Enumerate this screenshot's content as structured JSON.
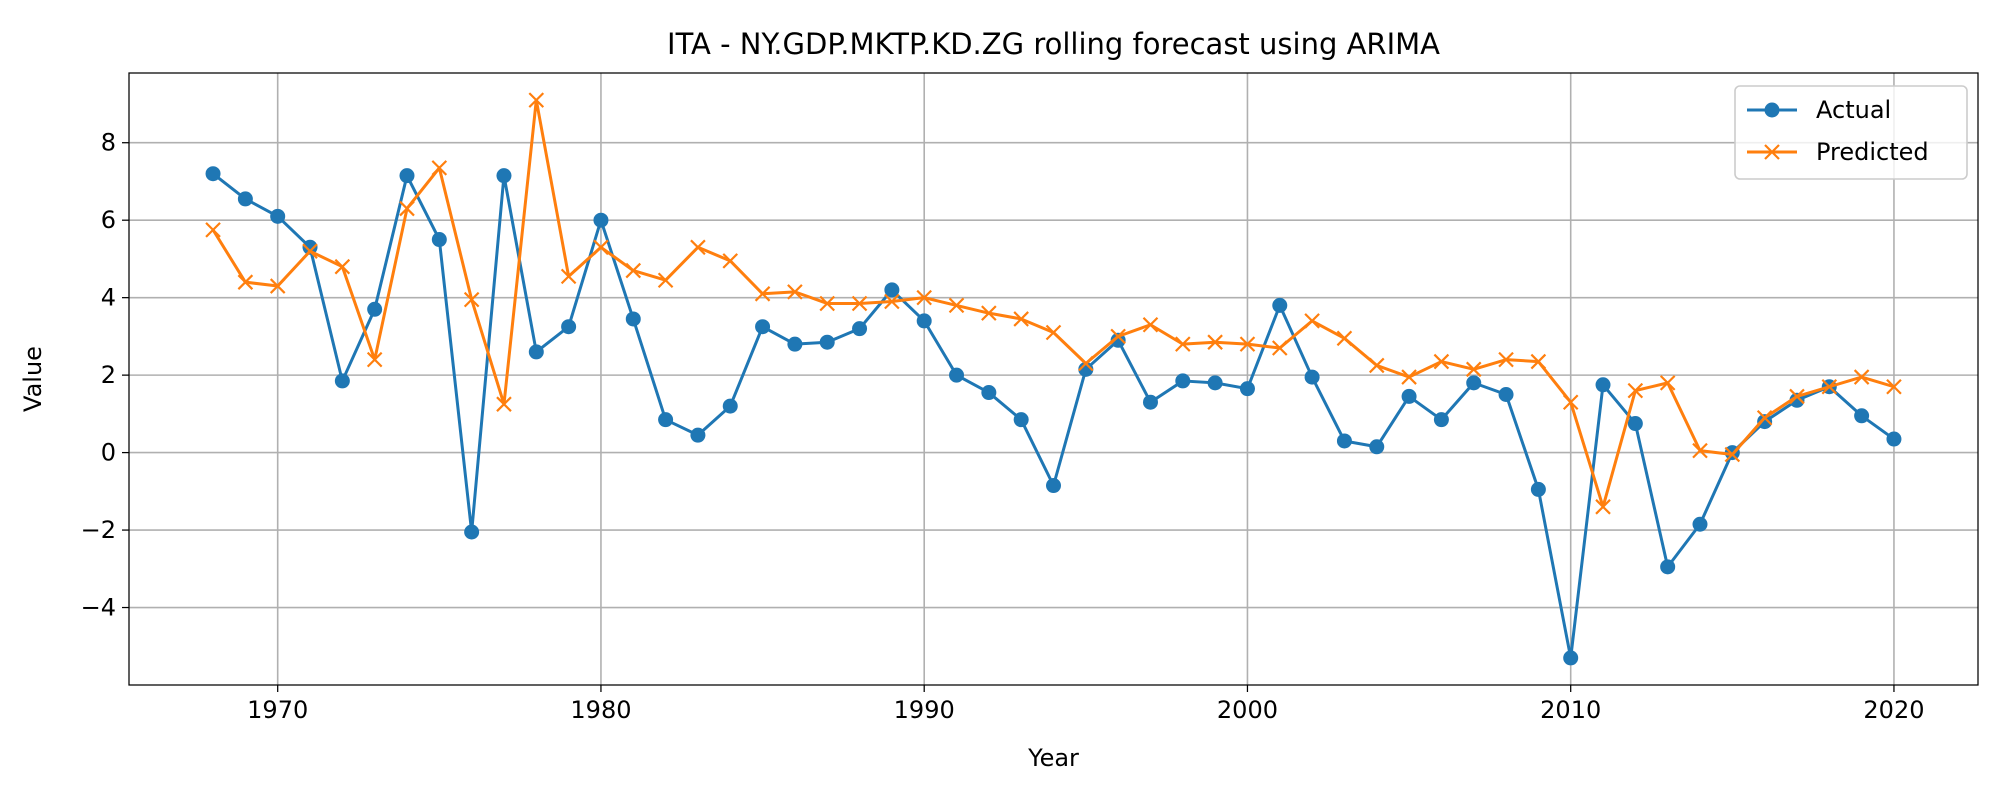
{
  "chart_data": {
    "type": "line",
    "title": "ITA - NY.GDP.MKTP.KD.ZG rolling forecast using ARIMA",
    "xlabel": "Year",
    "ylabel": "Value",
    "xlim": [
      1965.4,
      2022.6
    ],
    "ylim": [
      -6.0,
      9.8
    ],
    "xticks": [
      1970,
      1980,
      1990,
      2000,
      2010,
      2020
    ],
    "xtick_labels": [
      "1970",
      "1980",
      "1990",
      "2000",
      "2010",
      "2020"
    ],
    "yticks": [
      -4,
      -2,
      0,
      2,
      4,
      6,
      8
    ],
    "ytick_labels": [
      "−4",
      "−2",
      "0",
      "2",
      "4",
      "6",
      "8"
    ],
    "grid": true,
    "legend_position": "top-right",
    "x": [
      1968,
      1969,
      1970,
      1971,
      1972,
      1973,
      1974,
      1975,
      1976,
      1977,
      1978,
      1979,
      1980,
      1981,
      1982,
      1983,
      1984,
      1985,
      1986,
      1987,
      1988,
      1989,
      1990,
      1991,
      1992,
      1993,
      1994,
      1995,
      1996,
      1997,
      1998,
      1999,
      2000,
      2001,
      2002,
      2003,
      2004,
      2005,
      2006,
      2007,
      2008,
      2009,
      2010,
      2011,
      2012,
      2013,
      2014,
      2015,
      2016,
      2017,
      2018,
      2019,
      2020
    ],
    "series": [
      {
        "name": "Actual",
        "color": "#1f77b4",
        "marker": "circle",
        "values": [
          7.2,
          6.55,
          6.1,
          5.3,
          1.85,
          3.7,
          7.15,
          5.5,
          -2.05,
          7.15,
          2.6,
          3.25,
          6.0,
          3.45,
          0.85,
          0.45,
          1.2,
          3.25,
          2.8,
          2.85,
          3.2,
          4.2,
          3.4,
          2.0,
          1.55,
          0.85,
          -0.85,
          2.15,
          2.9,
          1.3,
          1.85,
          1.8,
          1.65,
          3.8,
          1.95,
          0.3,
          0.15,
          1.45,
          0.85,
          1.8,
          1.5,
          -0.95,
          -5.3,
          1.75,
          0.75,
          -2.95,
          -1.85,
          0.0,
          0.8,
          1.35,
          1.7,
          0.95,
          0.35
        ]
      },
      {
        "name": "Predicted",
        "color": "#ff7f0e",
        "marker": "x",
        "values": [
          5.75,
          4.4,
          4.3,
          5.2,
          4.8,
          2.4,
          6.3,
          7.35,
          3.95,
          1.25,
          9.1,
          4.55,
          5.3,
          4.7,
          4.45,
          5.3,
          4.95,
          4.1,
          4.15,
          3.85,
          3.85,
          3.9,
          4.0,
          3.8,
          3.6,
          3.45,
          3.1,
          2.3,
          3.0,
          3.3,
          2.8,
          2.85,
          2.8,
          2.7,
          3.4,
          2.95,
          2.25,
          1.95,
          2.35,
          2.15,
          2.4,
          2.35,
          1.3,
          -1.4,
          1.6,
          1.8,
          0.05,
          -0.05,
          0.9,
          1.45,
          1.7,
          1.95,
          1.7
        ]
      }
    ]
  }
}
